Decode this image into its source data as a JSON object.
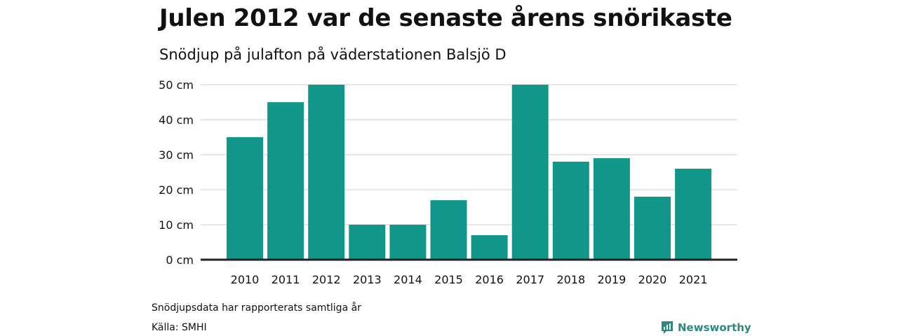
{
  "chart_data": {
    "type": "bar",
    "title": "Julen 2012 var de senaste årens snörikaste",
    "subtitle": "Snödjup på julafton på väderstationen Balsjö D",
    "categories": [
      "2010",
      "2011",
      "2012",
      "2013",
      "2014",
      "2015",
      "2016",
      "2017",
      "2018",
      "2019",
      "2020",
      "2021"
    ],
    "values": [
      35,
      45,
      50,
      10,
      10,
      17,
      7,
      50,
      28,
      29,
      18,
      26
    ],
    "ylim": [
      0,
      50
    ],
    "yticks": [
      0,
      10,
      20,
      30,
      40,
      50
    ],
    "ytick_labels": [
      "0 cm",
      "10 cm",
      "20 cm",
      "30 cm",
      "40 cm",
      "50 cm"
    ],
    "xlabel": "",
    "ylabel": "",
    "grid": true,
    "bar_color": "#13968A",
    "axis_color": "#222222",
    "grid_color": "#dddddd"
  },
  "footer": {
    "note": "Snödjupsdata har rapporterats samtliga år",
    "source": "Källa: SMHI"
  },
  "brand": {
    "name": "Newsworthy",
    "icon": "newsworthy-chart-icon",
    "color": "#2A8A7E"
  }
}
